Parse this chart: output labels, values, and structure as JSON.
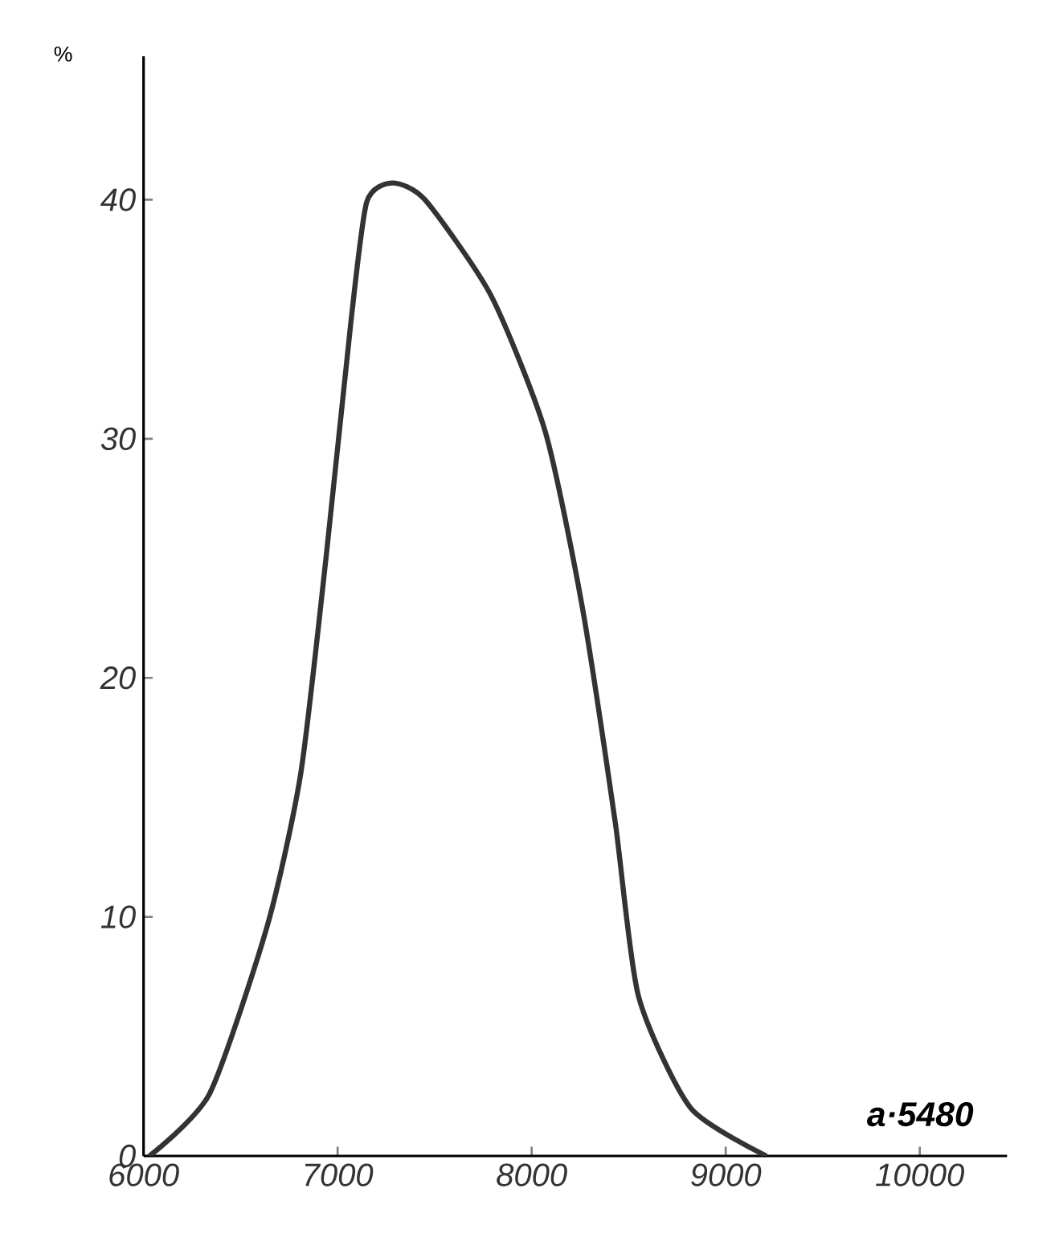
{
  "chart_data": {
    "type": "line",
    "ylabel": "%",
    "x": [
      6030,
      6340,
      6640,
      6810,
      6940,
      7070,
      7150,
      7280,
      7450,
      7790,
      8070,
      8260,
      8430,
      8550,
      8820,
      9210
    ],
    "series": [
      {
        "color": "#333333",
        "values": [
          0,
          2.6,
          9.7,
          16,
          25,
          35,
          39.9,
          40.7,
          40,
          36,
          30.3,
          23,
          14,
          6.7,
          2,
          0
        ]
      }
    ],
    "xlim": [
      6000,
      10450
    ],
    "ylim": [
      0,
      46
    ],
    "xticks": [
      6000,
      7000,
      8000,
      9000,
      10000
    ],
    "yticks": [
      0,
      10,
      20,
      30,
      40
    ],
    "grid": false,
    "marker": "none",
    "line_style": "solid",
    "annotations": [
      "a·5480"
    ]
  }
}
